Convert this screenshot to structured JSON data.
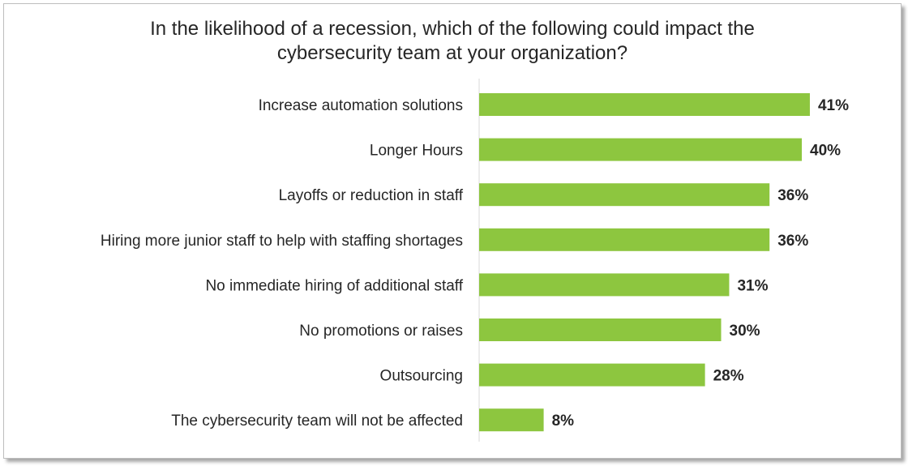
{
  "chart_data": {
    "type": "bar",
    "orientation": "horizontal",
    "title_lines": [
      "In the likelihood of a recession, which of the following could impact the",
      "cybersecurity team at your organization?"
    ],
    "categories": [
      "Increase automation solutions",
      "Longer Hours",
      "Layoffs or reduction in staff",
      "Hiring more junior staff to help with staffing shortages",
      "No immediate hiring of additional staff",
      "No promotions or raises",
      "Outsourcing",
      "The cybersecurity team will not be affected"
    ],
    "values": [
      41,
      40,
      36,
      36,
      31,
      30,
      28,
      8
    ],
    "value_labels": [
      "41%",
      "40%",
      "36%",
      "36%",
      "31%",
      "30%",
      "28%",
      "8%"
    ],
    "unit": "%",
    "xlim": [
      0,
      50
    ],
    "grid": false,
    "legend": "none",
    "bar_color": "#8dc63f",
    "axis_color": "#d9d9d9"
  }
}
